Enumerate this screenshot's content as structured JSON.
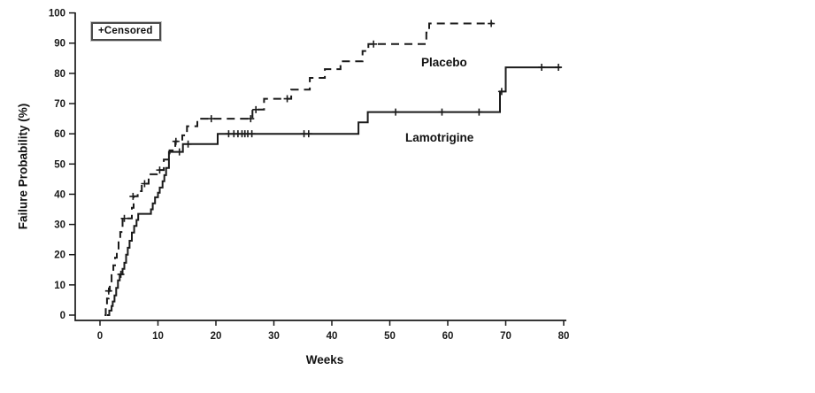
{
  "figure": {
    "background": "#ffffff",
    "line_color": "#1a1a1a",
    "text_color": "#111111"
  },
  "chart_data": {
    "type": "line",
    "subtype": "kaplan-meier-step",
    "title": "",
    "xlabel": "Weeks",
    "ylabel": "Failure Probability (%)",
    "xlim": [
      0,
      80
    ],
    "ylim": [
      0,
      100
    ],
    "x_ticks": [
      0,
      10,
      20,
      30,
      40,
      50,
      60,
      70,
      80
    ],
    "y_ticks": [
      0,
      10,
      20,
      30,
      40,
      50,
      60,
      70,
      80,
      90,
      100
    ],
    "grid": false,
    "legend": {
      "text": "+Censored",
      "position": "top-left"
    },
    "series": [
      {
        "name": "Placebo",
        "style": "dashed",
        "end_week": 67.8,
        "points": [
          [
            0.8,
            0
          ],
          [
            1.0,
            3
          ],
          [
            1.2,
            5.5
          ],
          [
            1.5,
            8
          ],
          [
            1.7,
            10.5
          ],
          [
            2.0,
            13.5
          ],
          [
            2.3,
            16.5
          ],
          [
            2.6,
            19
          ],
          [
            2.9,
            21.5
          ],
          [
            3.2,
            24.5
          ],
          [
            3.5,
            27.5
          ],
          [
            3.9,
            32
          ],
          [
            5.5,
            35.5
          ],
          [
            5.8,
            39.3
          ],
          [
            6.5,
            41
          ],
          [
            7.2,
            43.5
          ],
          [
            8.4,
            46.6
          ],
          [
            9.8,
            48
          ],
          [
            11.0,
            51.5
          ],
          [
            12.0,
            54.5
          ],
          [
            13.0,
            57.5
          ],
          [
            14.2,
            59.5
          ],
          [
            15.0,
            62.5
          ],
          [
            16.8,
            65
          ],
          [
            26.3,
            68
          ],
          [
            28.3,
            71.6
          ],
          [
            33.0,
            74.6
          ],
          [
            36.2,
            78.5
          ],
          [
            38.8,
            81.4
          ],
          [
            41.5,
            84
          ],
          [
            45.3,
            87.4
          ],
          [
            46.3,
            89.7
          ],
          [
            56.3,
            93.5
          ],
          [
            56.8,
            96.5
          ]
        ],
        "censored": [
          [
            1.5,
            8
          ],
          [
            4.2,
            32
          ],
          [
            5.7,
            39.3
          ],
          [
            7.7,
            43.5
          ],
          [
            10.3,
            48
          ],
          [
            13.1,
            57.5
          ],
          [
            19.2,
            65
          ],
          [
            26.0,
            65
          ],
          [
            26.9,
            68
          ],
          [
            32.3,
            71.6
          ],
          [
            47.2,
            89.7
          ],
          [
            67.5,
            96.5
          ]
        ]
      },
      {
        "name": "Lamotrigine",
        "style": "solid",
        "end_week": 79.5,
        "points": [
          [
            1.2,
            0
          ],
          [
            1.6,
            1.5
          ],
          [
            2.0,
            3
          ],
          [
            2.2,
            4.5
          ],
          [
            2.5,
            6.5
          ],
          [
            2.8,
            9
          ],
          [
            3.1,
            11.5
          ],
          [
            3.4,
            13.5
          ],
          [
            3.9,
            15.3
          ],
          [
            4.2,
            17.3
          ],
          [
            4.5,
            20
          ],
          [
            4.8,
            22.3
          ],
          [
            5.1,
            24.6
          ],
          [
            5.5,
            27.3
          ],
          [
            5.9,
            29.5
          ],
          [
            6.3,
            31.5
          ],
          [
            6.6,
            33.5
          ],
          [
            8.8,
            35
          ],
          [
            9.1,
            37
          ],
          [
            9.5,
            39
          ],
          [
            10.0,
            40.5
          ],
          [
            10.3,
            42.2
          ],
          [
            10.8,
            44.3
          ],
          [
            11.1,
            46.3
          ],
          [
            11.4,
            48.7
          ],
          [
            11.9,
            54
          ],
          [
            14.3,
            56.6
          ],
          [
            20.3,
            60
          ],
          [
            44.6,
            63.8
          ],
          [
            46.2,
            67.2
          ],
          [
            69.0,
            74
          ],
          [
            70.0,
            82
          ]
        ],
        "censored": [
          [
            3.6,
            13.5
          ],
          [
            13.7,
            54
          ],
          [
            15.2,
            56.6
          ],
          [
            22.2,
            60
          ],
          [
            23.1,
            60
          ],
          [
            23.8,
            60
          ],
          [
            24.5,
            60
          ],
          [
            25.0,
            60
          ],
          [
            25.5,
            60
          ],
          [
            26.2,
            60
          ],
          [
            35.2,
            60
          ],
          [
            36.0,
            60
          ],
          [
            51.0,
            67.2
          ],
          [
            59.0,
            67.2
          ],
          [
            65.4,
            67.2
          ],
          [
            69.3,
            74
          ],
          [
            76.2,
            82
          ],
          [
            79.1,
            82
          ]
        ]
      }
    ]
  }
}
